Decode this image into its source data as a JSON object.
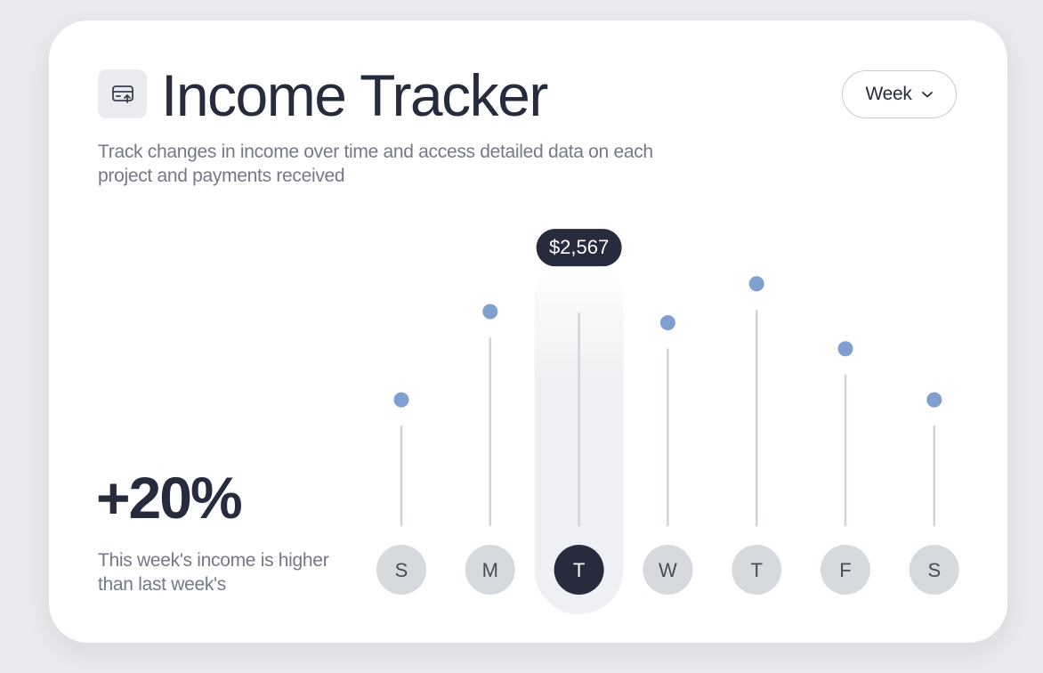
{
  "card": {
    "title": "Income Tracker",
    "subtitle": "Track changes in income over time and access detailed data on each project and payments received",
    "range_select": {
      "value": "Week"
    }
  },
  "summary": {
    "change": "+20%",
    "note": "This week's income is higher than last week's"
  },
  "chart_data": {
    "type": "scatter",
    "categories": [
      "S",
      "M",
      "T",
      "W",
      "T",
      "F",
      "S"
    ],
    "values": [
      1350,
      2300,
      2567,
      2180,
      2600,
      1900,
      1350
    ],
    "selected_index": 2,
    "tooltip": "$2,567",
    "ylim": [
      0,
      3000
    ],
    "colors": {
      "point": "#7f9fce",
      "stem": "#cfd3da",
      "highlight_bg": "#eef0f3",
      "day_circle": "#d6d9de",
      "day_circle_selected": "#262b3d",
      "day_text": "#474c5a",
      "day_text_selected": "#ffffff"
    }
  }
}
